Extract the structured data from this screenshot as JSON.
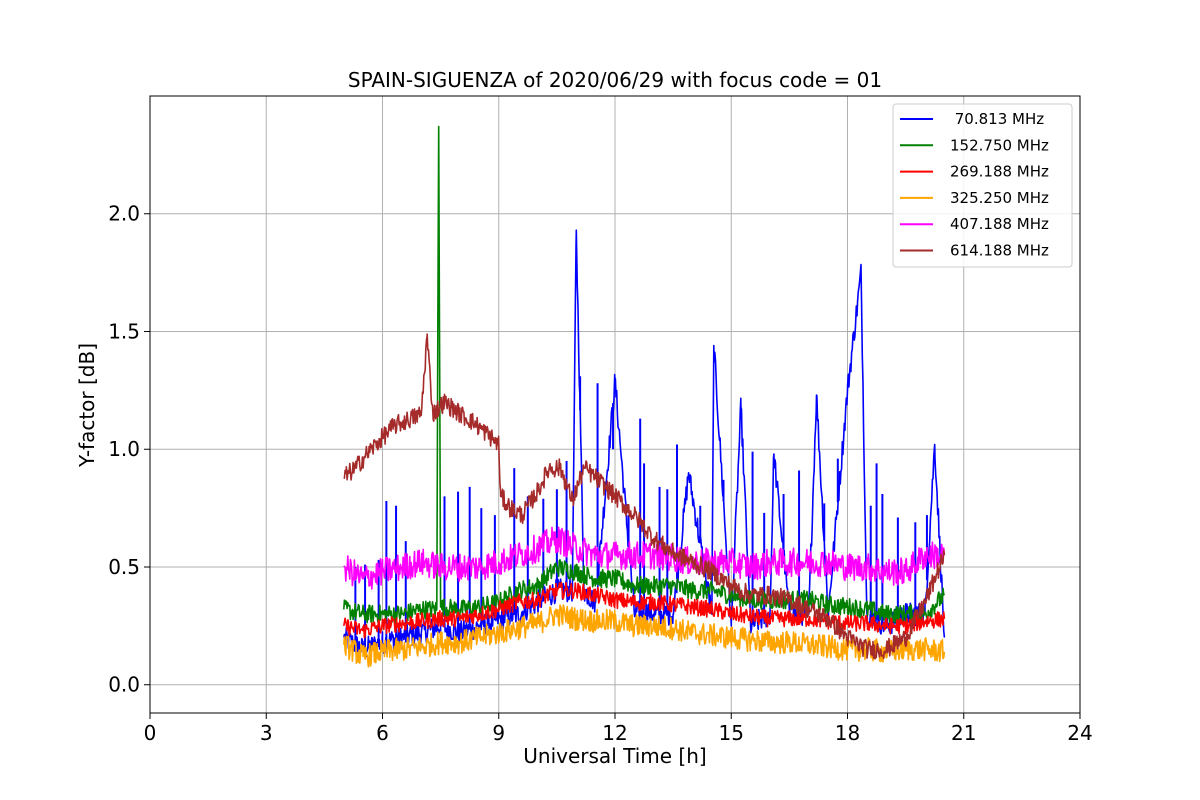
{
  "chart_data": {
    "type": "line",
    "title": "SPAIN-SIGUENZA of 2020/06/29 with focus code = 01",
    "xlabel": "Universal Time [h]",
    "ylabel": "Y-factor [dB]",
    "xlim": [
      0,
      24
    ],
    "ylim": [
      -0.12,
      2.5
    ],
    "xticks": [
      0,
      3,
      6,
      9,
      12,
      15,
      18,
      21,
      24
    ],
    "xtick_labels": [
      "0",
      "3",
      "6",
      "9",
      "12",
      "15",
      "18",
      "21",
      "24"
    ],
    "yticks": [
      0.0,
      0.5,
      1.0,
      1.5,
      2.0
    ],
    "ytick_labels": [
      "0.0",
      "0.5",
      "1.0",
      "1.5",
      "2.0"
    ],
    "grid": true,
    "legend_position": "top-right",
    "series": [
      {
        "name": " 70.813 MHz",
        "color": "#0000ff",
        "x": [
          5.0,
          5.5,
          6.0,
          6.5,
          7.0,
          7.5,
          8.0,
          8.5,
          9.0,
          9.5,
          10.0,
          10.5,
          10.9,
          11.0,
          11.2,
          11.5,
          12.0,
          12.5,
          12.8,
          13.0,
          13.5,
          13.9,
          14.5,
          14.55,
          15.0,
          15.25,
          15.5,
          16.0,
          16.1,
          16.5,
          17.0,
          17.2,
          17.5,
          18.0,
          18.35,
          18.5,
          19.0,
          19.5,
          20.0,
          20.25,
          20.5
        ],
        "y": [
          0.2,
          0.15,
          0.18,
          0.2,
          0.22,
          0.25,
          0.22,
          0.25,
          0.28,
          0.3,
          0.35,
          0.4,
          0.4,
          1.93,
          0.4,
          0.35,
          1.29,
          0.3,
          0.32,
          0.3,
          0.3,
          0.9,
          0.3,
          1.44,
          0.25,
          1.18,
          0.25,
          0.3,
          0.98,
          0.3,
          0.3,
          1.23,
          0.3,
          1.25,
          1.75,
          0.3,
          0.25,
          0.3,
          0.3,
          1.02,
          0.2
        ],
        "spikes_x": [
          5.3,
          5.55,
          5.9,
          6.1,
          6.35,
          6.6,
          7.6,
          7.95,
          8.25,
          8.55,
          8.9,
          9.4,
          9.75,
          10.15,
          10.5,
          10.75,
          11.1,
          11.55,
          11.95,
          12.35,
          12.65,
          12.75,
          13.15,
          13.35,
          13.6,
          14.2,
          14.8,
          15.55,
          15.85,
          16.35,
          16.75,
          17.4,
          17.75,
          18.6,
          18.75,
          18.9,
          19.3,
          19.75,
          20.05
        ],
        "spikes_y": [
          0.5,
          0.51,
          0.53,
          0.78,
          0.76,
          0.61,
          0.8,
          0.82,
          0.84,
          0.75,
          0.72,
          0.92,
          0.8,
          0.79,
          0.83,
          0.95,
          1.31,
          1.28,
          1.0,
          0.72,
          1.13,
          0.94,
          0.84,
          0.83,
          1.02,
          0.76,
          0.87,
          0.99,
          0.73,
          0.81,
          0.91,
          0.77,
          0.96,
          0.76,
          0.94,
          0.81,
          0.71,
          0.69,
          0.72
        ]
      },
      {
        "name": "152.750 MHz",
        "color": "#008000",
        "x": [
          5.0,
          5.5,
          6.0,
          6.5,
          7.0,
          7.4,
          7.45,
          7.5,
          8.0,
          8.5,
          9.0,
          9.5,
          10.0,
          10.5,
          11.0,
          11.5,
          12.0,
          12.5,
          13.0,
          13.5,
          14.0,
          14.5,
          15.0,
          15.5,
          16.0,
          16.5,
          17.0,
          17.5,
          18.0,
          18.5,
          19.0,
          19.5,
          20.0,
          20.5
        ],
        "y": [
          0.32,
          0.3,
          0.3,
          0.3,
          0.32,
          0.32,
          2.37,
          0.33,
          0.32,
          0.33,
          0.35,
          0.4,
          0.42,
          0.5,
          0.48,
          0.45,
          0.45,
          0.42,
          0.42,
          0.42,
          0.4,
          0.4,
          0.38,
          0.36,
          0.36,
          0.36,
          0.36,
          0.34,
          0.33,
          0.32,
          0.3,
          0.3,
          0.3,
          0.38
        ]
      },
      {
        "name": "269.188 MHz",
        "color": "#ff0000",
        "x": [
          5.0,
          5.5,
          6.0,
          6.5,
          7.0,
          7.5,
          8.0,
          8.5,
          9.0,
          9.5,
          10.0,
          10.5,
          11.0,
          11.5,
          12.0,
          12.5,
          13.0,
          13.5,
          14.0,
          14.5,
          15.0,
          15.5,
          16.0,
          16.5,
          17.0,
          17.5,
          18.0,
          18.5,
          19.0,
          19.5,
          20.0,
          20.5
        ],
        "y": [
          0.25,
          0.23,
          0.25,
          0.26,
          0.27,
          0.28,
          0.28,
          0.3,
          0.32,
          0.35,
          0.36,
          0.4,
          0.4,
          0.38,
          0.36,
          0.35,
          0.35,
          0.34,
          0.33,
          0.32,
          0.3,
          0.29,
          0.28,
          0.28,
          0.28,
          0.27,
          0.26,
          0.26,
          0.25,
          0.25,
          0.27,
          0.28
        ]
      },
      {
        "name": "325.250 MHz",
        "color": "#ffa500",
        "x": [
          5.0,
          5.5,
          6.0,
          6.5,
          7.0,
          7.5,
          8.0,
          8.5,
          9.0,
          9.5,
          10.0,
          10.5,
          11.0,
          11.5,
          12.0,
          12.5,
          13.0,
          13.5,
          14.0,
          14.5,
          15.0,
          15.5,
          16.0,
          16.5,
          17.0,
          17.5,
          18.0,
          18.5,
          19.0,
          19.5,
          20.0,
          20.5
        ],
        "y": [
          0.17,
          0.12,
          0.14,
          0.15,
          0.16,
          0.18,
          0.18,
          0.2,
          0.22,
          0.24,
          0.26,
          0.3,
          0.28,
          0.27,
          0.27,
          0.25,
          0.25,
          0.24,
          0.22,
          0.21,
          0.2,
          0.19,
          0.18,
          0.18,
          0.17,
          0.16,
          0.15,
          0.15,
          0.14,
          0.15,
          0.15,
          0.14
        ]
      },
      {
        "name": "407.188 MHz",
        "color": "#ff00ff",
        "x": [
          5.0,
          5.5,
          6.0,
          6.5,
          7.0,
          7.5,
          8.0,
          8.5,
          9.0,
          9.5,
          10.0,
          10.5,
          11.0,
          11.5,
          12.0,
          12.5,
          13.0,
          13.5,
          14.0,
          14.5,
          15.0,
          15.5,
          16.0,
          16.5,
          17.0,
          17.5,
          18.0,
          18.5,
          19.0,
          19.5,
          20.0,
          20.5
        ],
        "y": [
          0.5,
          0.45,
          0.48,
          0.5,
          0.52,
          0.5,
          0.5,
          0.5,
          0.52,
          0.55,
          0.58,
          0.62,
          0.58,
          0.55,
          0.55,
          0.55,
          0.55,
          0.54,
          0.52,
          0.52,
          0.52,
          0.5,
          0.52,
          0.52,
          0.52,
          0.52,
          0.5,
          0.5,
          0.48,
          0.48,
          0.55,
          0.55
        ]
      },
      {
        "name": "614.188 MHz",
        "color": "#a52a2a",
        "x": [
          5.0,
          5.3,
          5.6,
          6.0,
          6.3,
          6.6,
          7.0,
          7.15,
          7.3,
          7.6,
          8.0,
          8.3,
          8.6,
          9.0,
          9.05,
          9.3,
          9.6,
          10.0,
          10.3,
          10.6,
          10.9,
          11.2,
          11.5,
          12.0,
          12.5,
          13.0,
          13.5,
          14.0,
          14.5,
          15.0,
          15.5,
          16.0,
          16.5,
          17.0,
          17.5,
          18.0,
          18.5,
          19.0,
          19.5,
          20.0,
          20.5
        ],
        "y": [
          0.88,
          0.92,
          0.98,
          1.05,
          1.1,
          1.12,
          1.15,
          1.48,
          1.15,
          1.2,
          1.15,
          1.12,
          1.08,
          1.02,
          0.8,
          0.75,
          0.72,
          0.82,
          0.92,
          0.92,
          0.78,
          0.92,
          0.88,
          0.8,
          0.72,
          0.62,
          0.56,
          0.52,
          0.48,
          0.42,
          0.38,
          0.38,
          0.36,
          0.32,
          0.28,
          0.2,
          0.15,
          0.15,
          0.2,
          0.35,
          0.55
        ]
      }
    ]
  }
}
